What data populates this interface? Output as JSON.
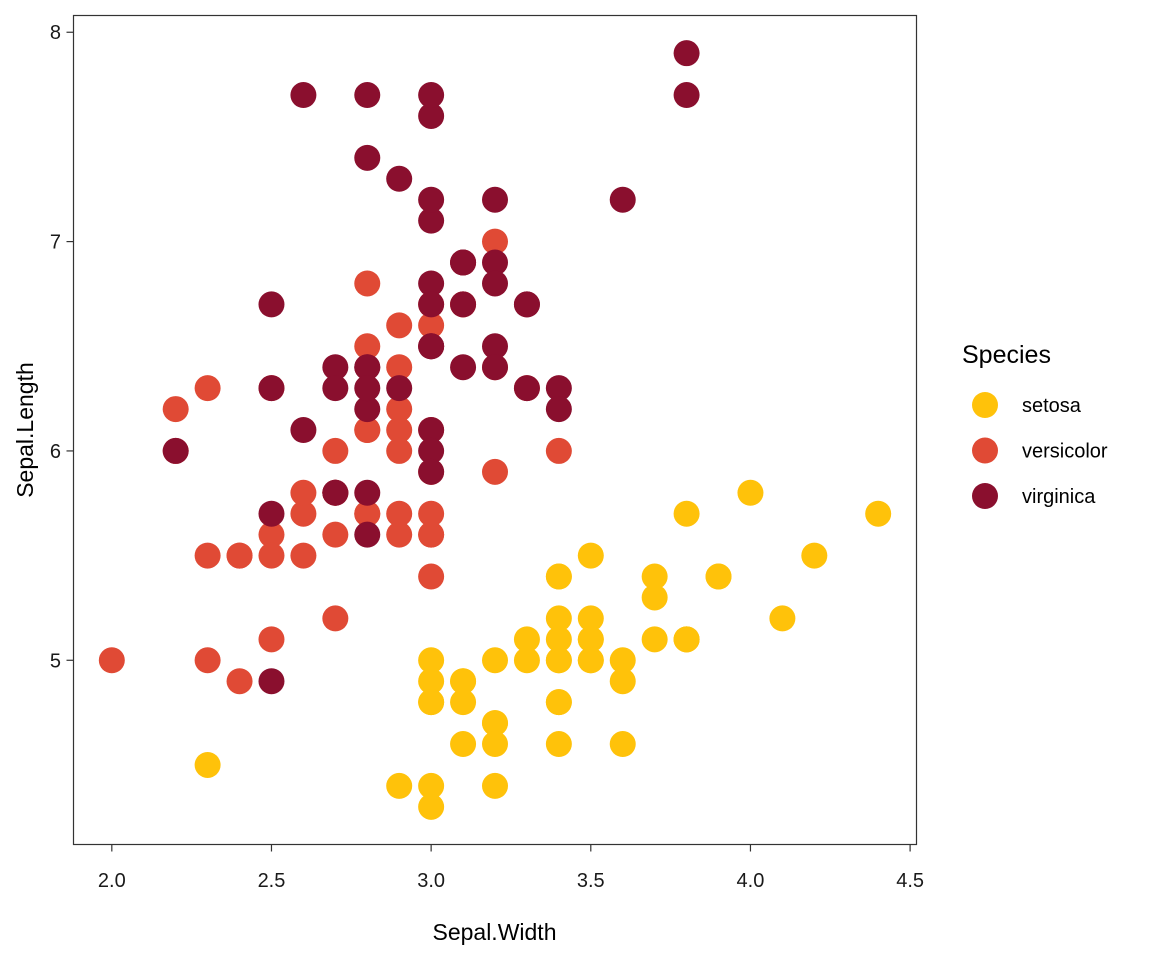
{
  "chart_data": {
    "type": "scatter",
    "title": "",
    "xlabel": "Sepal.Width",
    "ylabel": "Sepal.Length",
    "xlim": [
      1.88,
      4.52
    ],
    "ylim": [
      4.12,
      8.08
    ],
    "xticks": [
      2.0,
      2.5,
      3.0,
      3.5,
      4.0,
      4.5
    ],
    "xtick_labels": [
      "2.0",
      "2.5",
      "3.0",
      "3.5",
      "4.0",
      "4.5"
    ],
    "yticks": [
      5,
      6,
      7,
      8
    ],
    "ytick_labels": [
      "5",
      "6",
      "7",
      "8"
    ],
    "grid": false,
    "legend": {
      "title": "Species",
      "position": "right"
    },
    "series": [
      {
        "name": "setosa",
        "color": "#FFC20A",
        "points": [
          [
            3.5,
            5.1
          ],
          [
            3.0,
            4.9
          ],
          [
            3.2,
            4.7
          ],
          [
            3.1,
            4.6
          ],
          [
            3.6,
            5.0
          ],
          [
            3.9,
            5.4
          ],
          [
            3.4,
            4.6
          ],
          [
            3.4,
            5.0
          ],
          [
            2.9,
            4.4
          ],
          [
            3.1,
            4.9
          ],
          [
            3.7,
            5.4
          ],
          [
            3.4,
            4.8
          ],
          [
            3.0,
            4.8
          ],
          [
            3.0,
            4.3
          ],
          [
            4.0,
            5.8
          ],
          [
            4.4,
            5.7
          ],
          [
            3.9,
            5.4
          ],
          [
            3.5,
            5.1
          ],
          [
            3.8,
            5.7
          ],
          [
            3.8,
            5.1
          ],
          [
            3.4,
            5.4
          ],
          [
            3.7,
            5.1
          ],
          [
            3.6,
            4.6
          ],
          [
            3.3,
            5.1
          ],
          [
            3.4,
            4.8
          ],
          [
            3.0,
            5.0
          ],
          [
            3.4,
            5.0
          ],
          [
            3.5,
            5.2
          ],
          [
            3.4,
            5.2
          ],
          [
            3.2,
            4.7
          ],
          [
            3.1,
            4.8
          ],
          [
            3.4,
            5.4
          ],
          [
            4.1,
            5.2
          ],
          [
            4.2,
            5.5
          ],
          [
            3.1,
            4.9
          ],
          [
            3.2,
            5.0
          ],
          [
            3.5,
            5.5
          ],
          [
            3.6,
            4.9
          ],
          [
            3.0,
            4.4
          ],
          [
            3.4,
            5.1
          ],
          [
            3.5,
            5.0
          ],
          [
            2.3,
            4.5
          ],
          [
            3.2,
            4.4
          ],
          [
            3.5,
            5.0
          ],
          [
            3.8,
            5.1
          ],
          [
            3.0,
            4.8
          ],
          [
            3.8,
            5.1
          ],
          [
            3.2,
            4.6
          ],
          [
            3.7,
            5.3
          ],
          [
            3.3,
            5.0
          ]
        ]
      },
      {
        "name": "versicolor",
        "color": "#E04A35",
        "points": [
          [
            3.2,
            7.0
          ],
          [
            3.2,
            6.4
          ],
          [
            3.1,
            6.9
          ],
          [
            2.3,
            5.5
          ],
          [
            2.8,
            6.5
          ],
          [
            2.8,
            5.7
          ],
          [
            3.3,
            6.3
          ],
          [
            2.4,
            4.9
          ],
          [
            2.9,
            6.6
          ],
          [
            2.7,
            5.2
          ],
          [
            2.0,
            5.0
          ],
          [
            3.0,
            5.9
          ],
          [
            2.2,
            6.0
          ],
          [
            2.9,
            6.1
          ],
          [
            2.9,
            5.6
          ],
          [
            3.1,
            6.7
          ],
          [
            3.0,
            5.6
          ],
          [
            2.7,
            5.8
          ],
          [
            2.2,
            6.2
          ],
          [
            2.5,
            5.6
          ],
          [
            3.2,
            5.9
          ],
          [
            2.8,
            6.1
          ],
          [
            2.5,
            6.3
          ],
          [
            2.8,
            6.1
          ],
          [
            2.9,
            6.4
          ],
          [
            3.0,
            6.6
          ],
          [
            2.8,
            6.8
          ],
          [
            3.0,
            6.7
          ],
          [
            2.9,
            6.0
          ],
          [
            2.6,
            5.7
          ],
          [
            2.4,
            5.5
          ],
          [
            2.4,
            5.5
          ],
          [
            2.7,
            5.8
          ],
          [
            2.7,
            6.0
          ],
          [
            3.0,
            5.4
          ],
          [
            3.4,
            6.0
          ],
          [
            3.1,
            6.7
          ],
          [
            2.3,
            6.3
          ],
          [
            3.0,
            5.6
          ],
          [
            2.5,
            5.5
          ],
          [
            2.6,
            5.5
          ],
          [
            3.0,
            6.1
          ],
          [
            2.6,
            5.8
          ],
          [
            2.3,
            5.0
          ],
          [
            2.7,
            5.6
          ],
          [
            3.0,
            5.7
          ],
          [
            2.9,
            5.7
          ],
          [
            2.9,
            6.2
          ],
          [
            2.5,
            5.1
          ],
          [
            2.8,
            5.7
          ]
        ]
      },
      {
        "name": "virginica",
        "color": "#8A0F2E",
        "points": [
          [
            3.3,
            6.3
          ],
          [
            2.7,
            5.8
          ],
          [
            3.0,
            7.1
          ],
          [
            2.9,
            6.3
          ],
          [
            3.0,
            6.5
          ],
          [
            3.0,
            7.6
          ],
          [
            2.5,
            4.9
          ],
          [
            2.9,
            7.3
          ],
          [
            2.5,
            6.7
          ],
          [
            3.6,
            7.2
          ],
          [
            3.2,
            6.5
          ],
          [
            2.7,
            6.4
          ],
          [
            3.0,
            6.8
          ],
          [
            2.5,
            5.7
          ],
          [
            2.8,
            5.8
          ],
          [
            3.2,
            6.4
          ],
          [
            3.0,
            6.5
          ],
          [
            3.8,
            7.7
          ],
          [
            2.6,
            7.7
          ],
          [
            2.2,
            6.0
          ],
          [
            3.2,
            6.9
          ],
          [
            2.8,
            5.6
          ],
          [
            2.8,
            7.7
          ],
          [
            2.7,
            6.3
          ],
          [
            3.3,
            6.7
          ],
          [
            3.2,
            7.2
          ],
          [
            2.8,
            6.2
          ],
          [
            3.0,
            6.1
          ],
          [
            2.8,
            6.4
          ],
          [
            3.0,
            7.2
          ],
          [
            2.8,
            7.4
          ],
          [
            3.8,
            7.9
          ],
          [
            2.8,
            6.4
          ],
          [
            2.8,
            6.3
          ],
          [
            2.6,
            6.1
          ],
          [
            3.0,
            7.7
          ],
          [
            3.4,
            6.3
          ],
          [
            3.1,
            6.4
          ],
          [
            3.0,
            6.0
          ],
          [
            3.1,
            6.9
          ],
          [
            3.1,
            6.7
          ],
          [
            3.1,
            6.9
          ],
          [
            2.7,
            5.8
          ],
          [
            3.2,
            6.8
          ],
          [
            3.3,
            6.7
          ],
          [
            3.0,
            6.7
          ],
          [
            2.5,
            6.3
          ],
          [
            3.0,
            6.5
          ],
          [
            3.4,
            6.2
          ],
          [
            3.0,
            5.9
          ]
        ]
      }
    ]
  }
}
